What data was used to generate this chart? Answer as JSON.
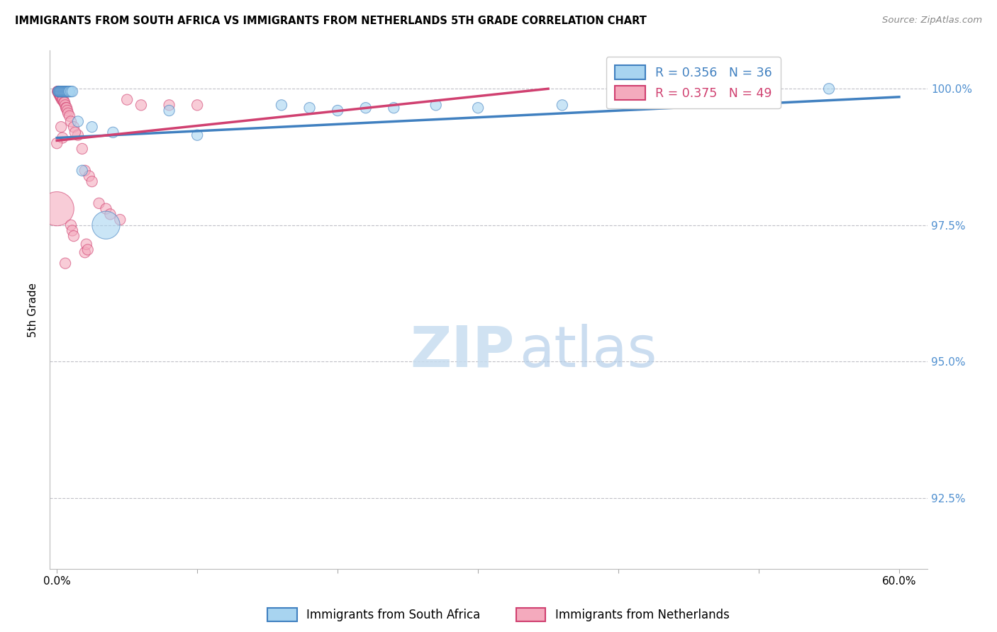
{
  "title": "IMMIGRANTS FROM SOUTH AFRICA VS IMMIGRANTS FROM NETHERLANDS 5TH GRADE CORRELATION CHART",
  "source": "Source: ZipAtlas.com",
  "ylabel": "5th Grade",
  "ylim_min": 91.2,
  "ylim_max": 100.7,
  "xlim_min": -0.5,
  "xlim_max": 62.0,
  "yticks": [
    92.5,
    95.0,
    97.5,
    100.0
  ],
  "ytick_labels": [
    "92.5%",
    "95.0%",
    "97.5%",
    "100.0%"
  ],
  "blue_label": "Immigrants from South Africa",
  "pink_label": "Immigrants from Netherlands",
  "blue_R": 0.356,
  "blue_N": 36,
  "pink_R": 0.375,
  "pink_N": 49,
  "blue_color": "#a8d4f0",
  "pink_color": "#f4aabd",
  "trend_blue": "#4080c0",
  "trend_pink": "#d04070",
  "watermark_zip": "ZIP",
  "watermark_atlas": "atlas",
  "blue_trend_x": [
    0,
    60
  ],
  "blue_trend_y": [
    99.1,
    99.85
  ],
  "pink_trend_x": [
    0,
    35
  ],
  "pink_trend_y": [
    99.05,
    100.0
  ],
  "blue_points": [
    [
      0.1,
      99.95
    ],
    [
      0.15,
      99.95
    ],
    [
      0.18,
      99.95
    ],
    [
      0.22,
      99.95
    ],
    [
      0.25,
      99.95
    ],
    [
      0.3,
      99.95
    ],
    [
      0.35,
      99.95
    ],
    [
      0.4,
      99.95
    ],
    [
      0.45,
      99.95
    ],
    [
      0.5,
      99.95
    ],
    [
      0.55,
      99.95
    ],
    [
      0.6,
      99.95
    ],
    [
      0.65,
      99.95
    ],
    [
      0.7,
      99.95
    ],
    [
      0.75,
      99.95
    ],
    [
      0.8,
      99.95
    ],
    [
      0.85,
      99.95
    ],
    [
      0.9,
      99.95
    ],
    [
      1.0,
      99.95
    ],
    [
      1.1,
      99.95
    ],
    [
      1.5,
      99.4
    ],
    [
      2.5,
      99.3
    ],
    [
      4.0,
      99.2
    ],
    [
      8.0,
      99.6
    ],
    [
      10.0,
      99.15
    ],
    [
      16.0,
      99.7
    ],
    [
      18.0,
      99.65
    ],
    [
      20.0,
      99.6
    ],
    [
      22.0,
      99.65
    ],
    [
      24.0,
      99.65
    ],
    [
      27.0,
      99.7
    ],
    [
      30.0,
      99.65
    ],
    [
      36.0,
      99.7
    ],
    [
      55.0,
      100.0
    ],
    [
      1.8,
      98.5
    ],
    [
      3.5,
      97.5
    ]
  ],
  "pink_points": [
    [
      0.05,
      99.95
    ],
    [
      0.08,
      99.95
    ],
    [
      0.1,
      99.95
    ],
    [
      0.12,
      99.95
    ],
    [
      0.15,
      99.9
    ],
    [
      0.18,
      99.9
    ],
    [
      0.2,
      99.9
    ],
    [
      0.22,
      99.9
    ],
    [
      0.25,
      99.85
    ],
    [
      0.28,
      99.85
    ],
    [
      0.3,
      99.85
    ],
    [
      0.35,
      99.8
    ],
    [
      0.4,
      99.8
    ],
    [
      0.45,
      99.8
    ],
    [
      0.5,
      99.75
    ],
    [
      0.55,
      99.75
    ],
    [
      0.6,
      99.7
    ],
    [
      0.65,
      99.65
    ],
    [
      0.7,
      99.65
    ],
    [
      0.75,
      99.6
    ],
    [
      0.8,
      99.55
    ],
    [
      0.9,
      99.5
    ],
    [
      1.0,
      99.4
    ],
    [
      1.2,
      99.3
    ],
    [
      1.5,
      99.15
    ],
    [
      1.8,
      98.9
    ],
    [
      2.0,
      98.5
    ],
    [
      2.3,
      98.4
    ],
    [
      2.5,
      98.3
    ],
    [
      3.0,
      97.9
    ],
    [
      3.5,
      97.8
    ],
    [
      3.8,
      97.7
    ],
    [
      1.3,
      99.2
    ],
    [
      4.5,
      97.6
    ],
    [
      5.0,
      99.8
    ],
    [
      6.0,
      99.7
    ],
    [
      0.0,
      97.8
    ],
    [
      1.0,
      97.5
    ],
    [
      1.1,
      97.4
    ],
    [
      1.2,
      97.3
    ],
    [
      2.0,
      97.0
    ],
    [
      2.1,
      97.15
    ],
    [
      2.2,
      97.05
    ],
    [
      0.6,
      96.8
    ],
    [
      0.3,
      99.3
    ],
    [
      0.4,
      99.1
    ],
    [
      8.0,
      99.7
    ],
    [
      10.0,
      99.7
    ],
    [
      0.0,
      99.0
    ]
  ],
  "blue_sizes_small": 120,
  "blue_sizes_large": 800,
  "pink_sizes_small": 120,
  "pink_sizes_large": 1200
}
